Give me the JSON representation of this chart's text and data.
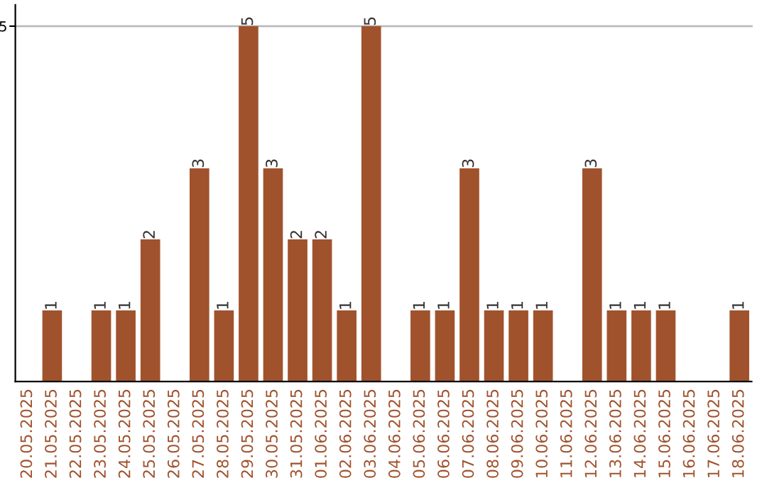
{
  "chart_data": {
    "type": "bar",
    "categories": [
      "20.05.2025",
      "21.05.2025",
      "22.05.2025",
      "23.05.2025",
      "24.05.2025",
      "25.05.2025",
      "26.05.2025",
      "27.05.2025",
      "28.05.2025",
      "29.05.2025",
      "30.05.2025",
      "31.05.2025",
      "01.06.2025",
      "02.06.2025",
      "03.06.2025",
      "04.06.2025",
      "05.06.2025",
      "06.06.2025",
      "07.06.2025",
      "08.06.2025",
      "09.06.2025",
      "10.06.2025",
      "11.06.2025",
      "12.06.2025",
      "13.06.2025",
      "14.06.2025",
      "15.06.2025",
      "16.06.2025",
      "17.06.2025",
      "18.06.2025"
    ],
    "values": [
      0,
      1,
      0,
      1,
      1,
      2,
      0,
      3,
      1,
      5,
      3,
      2,
      2,
      1,
      5,
      0,
      1,
      1,
      3,
      1,
      1,
      1,
      0,
      3,
      1,
      1,
      1,
      0,
      0,
      1
    ],
    "value_labels": [
      null,
      "1",
      null,
      "1",
      "1",
      "2",
      null,
      "3",
      "1",
      "5",
      "3",
      "2",
      "2",
      "1",
      "5",
      null,
      "1",
      "1",
      "3",
      "1",
      "1",
      "1",
      null,
      "3",
      "1",
      "1",
      "1",
      null,
      null,
      "1"
    ],
    "color": "#a0522d",
    "ylim": [
      0,
      5.3
    ],
    "yticks": [
      5
    ],
    "grid": "y"
  }
}
